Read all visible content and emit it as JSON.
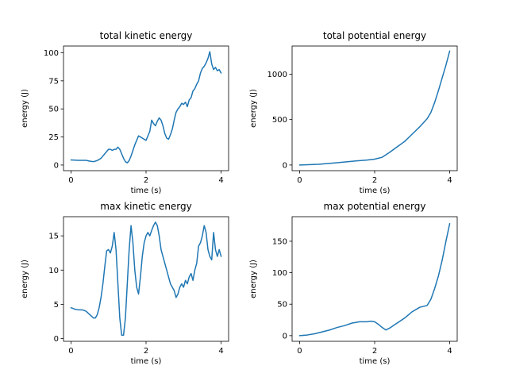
{
  "chart_data": [
    {
      "type": "line",
      "title": "total kinetic energy",
      "xlabel": "time (s)",
      "ylabel": "energy (J)",
      "xlim": [
        -0.2,
        4.2
      ],
      "ylim": [
        -5,
        106
      ],
      "xticks": [
        0,
        2,
        4
      ],
      "yticks": [
        0,
        25,
        50,
        75,
        100
      ],
      "grid": false,
      "series": [
        {
          "color": "#1f77b4",
          "x": [
            0,
            0.2,
            0.4,
            0.5,
            0.6,
            0.7,
            0.8,
            0.9,
            1.0,
            1.05,
            1.1,
            1.15,
            1.2,
            1.25,
            1.3,
            1.4,
            1.45,
            1.5,
            1.55,
            1.6,
            1.7,
            1.8,
            1.85,
            1.9,
            2.0,
            2.1,
            2.15,
            2.2,
            2.25,
            2.3,
            2.35,
            2.4,
            2.45,
            2.5,
            2.55,
            2.6,
            2.65,
            2.7,
            2.75,
            2.8,
            2.85,
            2.9,
            2.95,
            3.0,
            3.05,
            3.1,
            3.15,
            3.2,
            3.25,
            3.3,
            3.35,
            3.4,
            3.45,
            3.5,
            3.55,
            3.6,
            3.65,
            3.7,
            3.75,
            3.8,
            3.85,
            3.9,
            3.95,
            4.0
          ],
          "y": [
            4.5,
            4.2,
            4.2,
            3.5,
            3,
            4,
            6,
            10,
            14,
            14,
            13,
            14,
            14,
            16,
            14,
            6,
            3,
            2,
            4,
            8,
            18,
            26,
            25,
            24,
            22,
            30,
            40,
            37,
            35,
            39,
            42,
            40,
            35,
            28,
            24,
            23,
            27,
            32,
            40,
            47,
            50,
            52,
            55,
            54,
            56,
            52,
            58,
            60,
            66,
            68,
            72,
            75,
            82,
            86,
            88,
            91,
            95,
            101,
            90,
            85,
            87,
            84,
            85,
            82
          ]
        }
      ]
    },
    {
      "type": "line",
      "title": "total potential energy",
      "xlabel": "time (s)",
      "ylabel": "energy (J)",
      "xlim": [
        -0.2,
        4.2
      ],
      "ylim": [
        -62,
        1310
      ],
      "xticks": [
        0,
        2,
        4
      ],
      "yticks": [
        0,
        500,
        1000
      ],
      "grid": false,
      "series": [
        {
          "color": "#1f77b4",
          "x": [
            0,
            0.5,
            1.0,
            1.5,
            1.8,
            2.0,
            2.2,
            2.4,
            2.6,
            2.8,
            3.0,
            3.2,
            3.4,
            3.5,
            3.6,
            3.7,
            3.8,
            3.9,
            4.0
          ],
          "y": [
            0,
            8,
            25,
            45,
            55,
            65,
            85,
            140,
            200,
            260,
            340,
            420,
            510,
            580,
            690,
            820,
            960,
            1100,
            1255
          ]
        }
      ]
    },
    {
      "type": "line",
      "title": "max kinetic energy",
      "xlabel": "time (s)",
      "ylabel": "energy (J)",
      "xlim": [
        -0.2,
        4.2
      ],
      "ylim": [
        -0.4,
        17.8
      ],
      "xticks": [
        0,
        2,
        4
      ],
      "yticks": [
        0,
        5,
        10,
        15
      ],
      "grid": false,
      "series": [
        {
          "color": "#1f77b4",
          "x": [
            0,
            0.1,
            0.2,
            0.3,
            0.4,
            0.5,
            0.6,
            0.65,
            0.7,
            0.75,
            0.8,
            0.85,
            0.9,
            0.95,
            1.0,
            1.05,
            1.1,
            1.15,
            1.2,
            1.25,
            1.3,
            1.35,
            1.4,
            1.45,
            1.5,
            1.55,
            1.6,
            1.65,
            1.7,
            1.75,
            1.8,
            1.85,
            1.9,
            1.95,
            2.0,
            2.05,
            2.1,
            2.15,
            2.2,
            2.25,
            2.3,
            2.35,
            2.4,
            2.45,
            2.5,
            2.55,
            2.6,
            2.65,
            2.7,
            2.75,
            2.8,
            2.85,
            2.9,
            2.95,
            3.0,
            3.05,
            3.1,
            3.15,
            3.2,
            3.25,
            3.3,
            3.35,
            3.4,
            3.45,
            3.5,
            3.55,
            3.6,
            3.65,
            3.7,
            3.75,
            3.8,
            3.85,
            3.9,
            3.95,
            4.0
          ],
          "y": [
            4.5,
            4.3,
            4.2,
            4.2,
            4.0,
            3.5,
            3.0,
            3.0,
            3.5,
            4.5,
            6.0,
            8.0,
            10.5,
            12.8,
            13.0,
            12.5,
            13.5,
            15.5,
            13.0,
            8.0,
            3.0,
            0.5,
            0.5,
            3.0,
            8.0,
            13.0,
            16.5,
            14.0,
            10.0,
            7.5,
            6.5,
            9.0,
            12.0,
            14.0,
            15.0,
            15.5,
            15.0,
            15.8,
            16.5,
            17.0,
            16.5,
            15.0,
            13.0,
            12.0,
            11.0,
            10.0,
            9.0,
            8.0,
            7.5,
            7.0,
            6.0,
            6.5,
            7.5,
            8.0,
            7.5,
            8.5,
            8.0,
            9.0,
            9.5,
            8.5,
            10.0,
            11.0,
            13.5,
            14.0,
            15.0,
            16.5,
            15.5,
            13.0,
            12.0,
            11.5,
            15.5,
            13.0,
            12.0,
            13.0,
            12.0
          ]
        }
      ]
    },
    {
      "type": "line",
      "title": "max potential energy",
      "xlabel": "time (s)",
      "ylabel": "energy (J)",
      "xlim": [
        -0.2,
        4.2
      ],
      "ylim": [
        -9,
        189
      ],
      "xticks": [
        0,
        2,
        4
      ],
      "yticks": [
        0,
        50,
        100,
        150
      ],
      "grid": false,
      "series": [
        {
          "color": "#1f77b4",
          "x": [
            0,
            0.2,
            0.4,
            0.6,
            0.8,
            1.0,
            1.2,
            1.4,
            1.6,
            1.8,
            1.9,
            2.0,
            2.1,
            2.2,
            2.3,
            2.4,
            2.5,
            2.6,
            2.8,
            3.0,
            3.2,
            3.4,
            3.5,
            3.6,
            3.7,
            3.8,
            3.9,
            4.0
          ],
          "y": [
            0,
            1,
            3,
            6,
            9,
            13,
            16,
            20,
            22,
            22,
            23,
            22,
            18,
            13,
            9,
            12,
            16,
            20,
            28,
            38,
            45,
            48,
            58,
            75,
            95,
            120,
            150,
            178
          ]
        }
      ]
    }
  ]
}
